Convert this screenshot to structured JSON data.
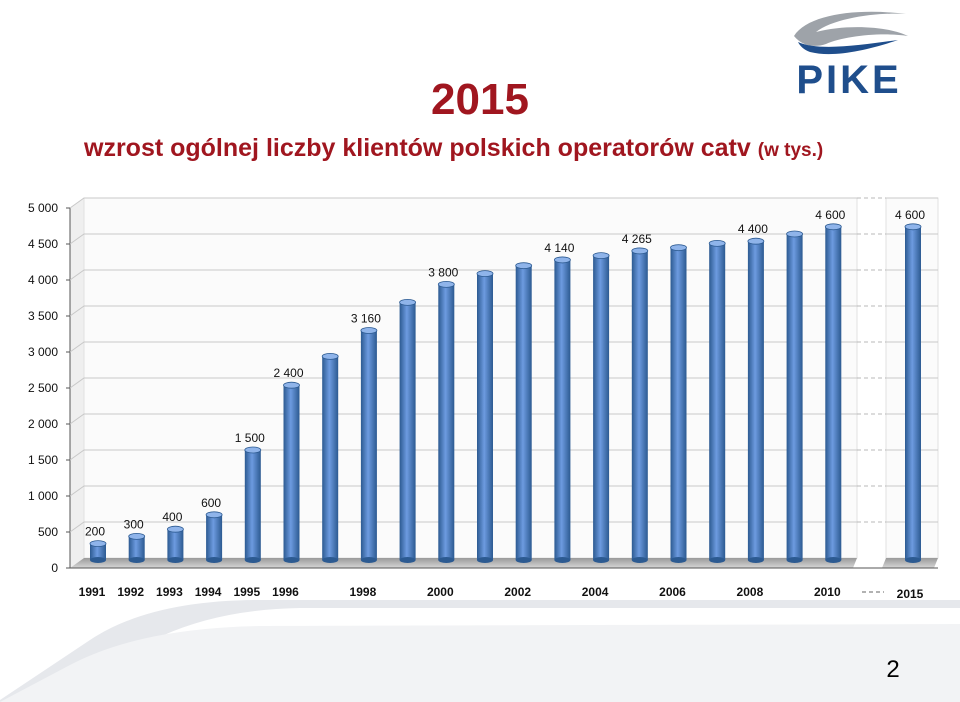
{
  "slide": {
    "title": "2015",
    "subtitle_main": "wzrost ogólnej liczby klientów polskich operatorów catv",
    "subtitle_suffix": "(w tys.)",
    "page_number": "2"
  },
  "logo": {
    "text": "PIKE",
    "color": "#1f4e8c"
  },
  "colors": {
    "title": "#a0161f",
    "bar": "#4f81bd",
    "bar_dark": "#2c5a91"
  },
  "chart_data": {
    "type": "bar",
    "x": [
      1991,
      1992,
      1993,
      1994,
      1995,
      1996,
      1997,
      1998,
      1999,
      2000,
      2001,
      2002,
      2003,
      2004,
      2005,
      2006,
      2007,
      2008,
      2009,
      2010
    ],
    "values": [
      200,
      300,
      400,
      600,
      1500,
      2400,
      2800,
      3160,
      3550,
      3800,
      3950,
      4060,
      4140,
      4200,
      4265,
      4310,
      4370,
      4400,
      4500,
      4600
    ],
    "data_labels": [
      "200",
      "300",
      "400",
      "600",
      "1 500",
      "2 400",
      "",
      "3 160",
      "",
      "3 800",
      "",
      "",
      "4 140",
      "",
      "4 265",
      "",
      "",
      "4 400",
      "",
      "4 600"
    ],
    "x_tick_labels": [
      "1991",
      "1992",
      "1993",
      "1994",
      "1995",
      "1996",
      "",
      "1998",
      "",
      "2000",
      "",
      "2002",
      "",
      "2004",
      "",
      "2006",
      "",
      "2008",
      "",
      "2010"
    ],
    "forecast": {
      "category": "2015",
      "value": 4600,
      "label": "4 600"
    },
    "y_ticks": [
      0,
      500,
      1000,
      1500,
      2000,
      2500,
      3000,
      3500,
      4000,
      4500,
      5000
    ],
    "y_tick_labels": [
      "0",
      "500",
      "1 000",
      "1 500",
      "2 000",
      "2 500",
      "3 000",
      "3 500",
      "4 000",
      "4 500",
      "5 000"
    ],
    "ylim": [
      0,
      5000
    ],
    "grid": true,
    "title": "",
    "xlabel": "",
    "ylabel": ""
  }
}
